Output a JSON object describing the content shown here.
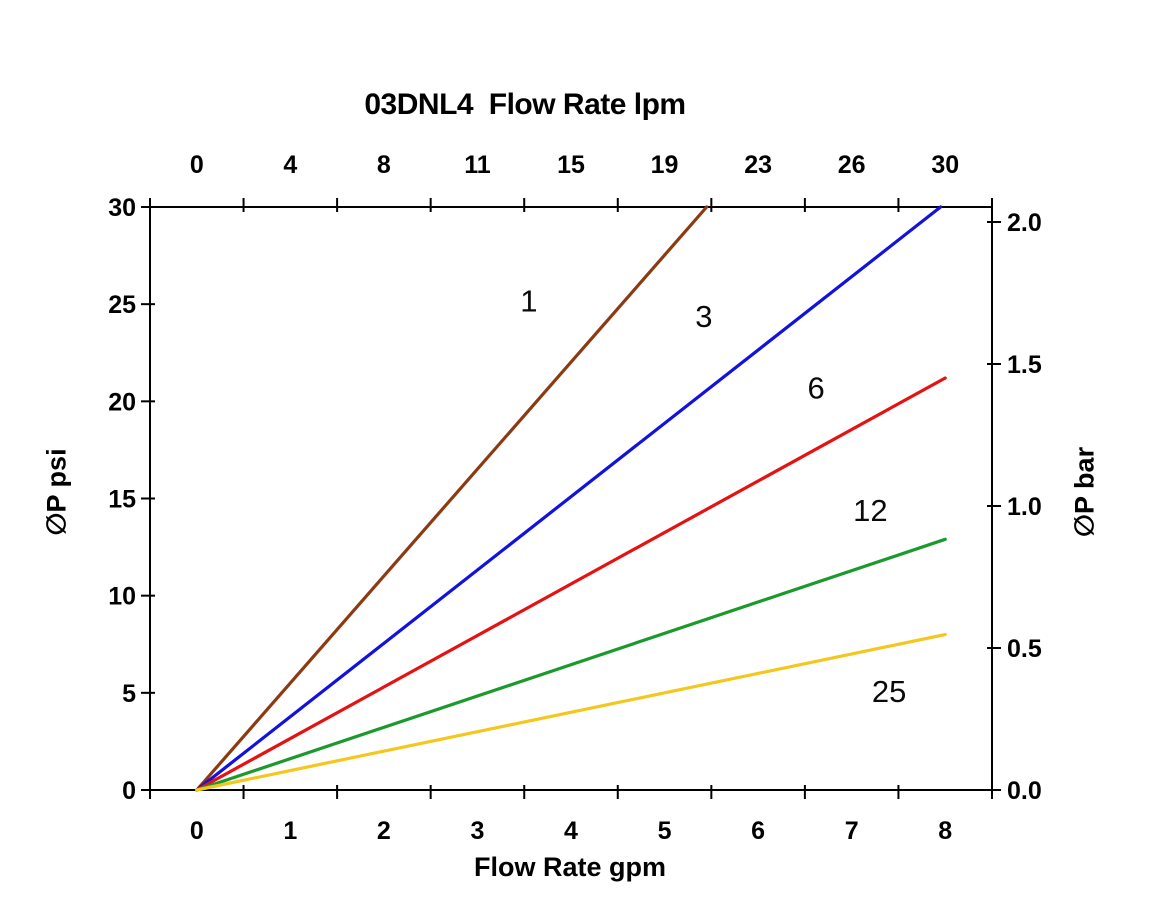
{
  "chart_data": {
    "type": "line",
    "title": "03DNL4  Flow Rate lpm",
    "xlabel_bottom": "Flow Rate gpm",
    "xlabel_top": "Flow Rate lpm",
    "ylabel_left": "∅P psi",
    "ylabel_right": "∅P bar",
    "xlim": [
      0,
      8
    ],
    "ylim": [
      0,
      30
    ],
    "grid": false,
    "legend": "inline curve labels",
    "x_bottom_ticklabels": [
      "0",
      "1",
      "2",
      "3",
      "4",
      "5",
      "6",
      "7",
      "8"
    ],
    "x_top_ticklabels": [
      "0",
      "4",
      "8",
      "11",
      "15",
      "19",
      "23",
      "26",
      "30"
    ],
    "y_left_ticks": [
      0,
      5,
      10,
      15,
      20,
      25,
      30
    ],
    "y_left_ticklabels": [
      "0",
      "5",
      "10",
      "15",
      "20",
      "25",
      "30"
    ],
    "y_right_ticks": [
      0.0,
      0.5,
      1.0,
      1.5,
      2.0
    ],
    "y_right_ticklabels": [
      "0.0",
      "0.5",
      "1.0",
      "1.5",
      "2.0"
    ],
    "series": [
      {
        "name": "1",
        "color": "#8C3A12",
        "points": [
          [
            0,
            0
          ],
          [
            5.45,
            30
          ]
        ],
        "label_at": [
          3.55,
          25.2
        ]
      },
      {
        "name": "3",
        "color": "#1212DE",
        "points": [
          [
            0,
            0
          ],
          [
            7.95,
            30
          ]
        ],
        "label_at": [
          5.42,
          24.4
        ]
      },
      {
        "name": "6",
        "color": "#E51212",
        "points": [
          [
            0,
            0
          ],
          [
            8,
            21.2
          ]
        ],
        "label_at": [
          6.62,
          20.7
        ]
      },
      {
        "name": "12",
        "color": "#1B9A2C",
        "points": [
          [
            0,
            0
          ],
          [
            8,
            12.9
          ]
        ],
        "label_at": [
          7.2,
          14.4
        ]
      },
      {
        "name": "25",
        "color": "#F3C71E",
        "points": [
          [
            0,
            0
          ],
          [
            8,
            8.0
          ]
        ],
        "label_at": [
          7.4,
          5.1
        ]
      }
    ]
  }
}
